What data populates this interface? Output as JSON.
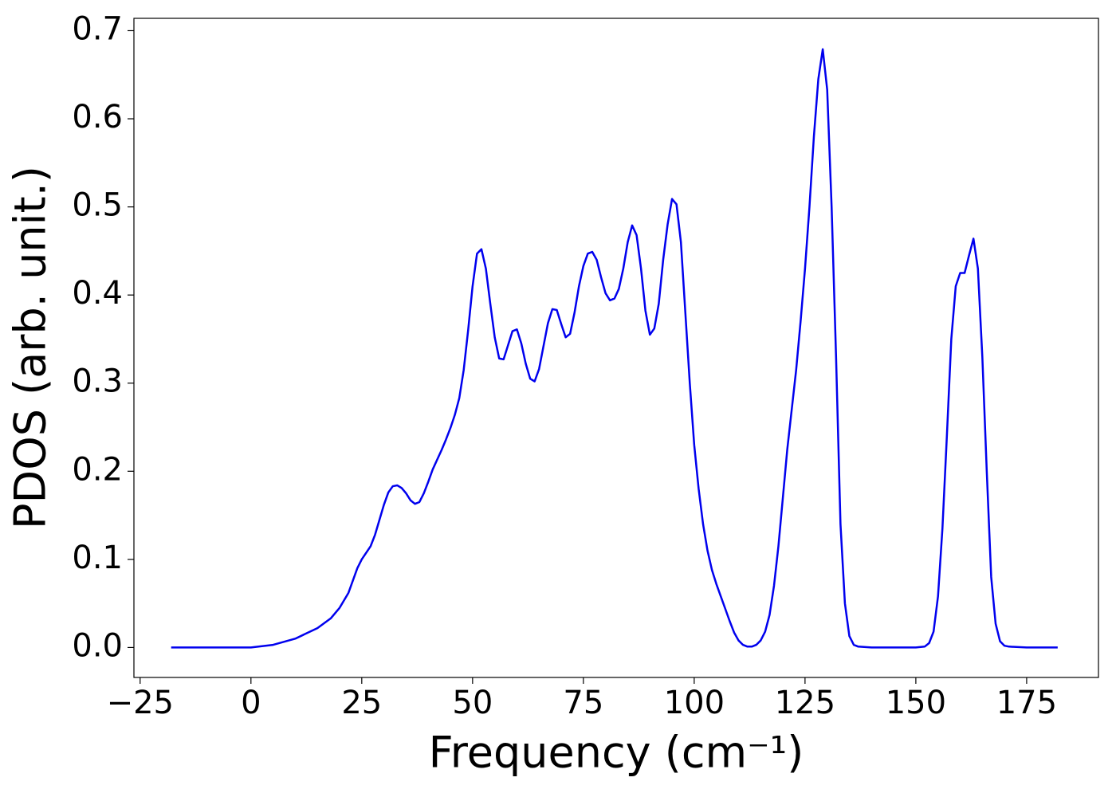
{
  "chart_data": {
    "type": "line",
    "xlabel": "Frequency (cm⁻¹)",
    "ylabel": "PDOS (arb. unit.)",
    "xlim": [
      -26.4,
      191.2
    ],
    "ylim": [
      -0.034,
      0.714
    ],
    "xticks": [
      {
        "value": -25,
        "label": "−25"
      },
      0,
      25,
      50,
      75,
      100,
      125,
      150,
      175
    ],
    "yticks": [
      {
        "value": 0,
        "label": "0.0"
      },
      0.1,
      0.2,
      0.3,
      0.4,
      0.5,
      0.6,
      0.7
    ],
    "series": [
      {
        "color": "#0000ee",
        "x": [
          -18,
          -10,
          0,
          5,
          10,
          15,
          18,
          20,
          22,
          24,
          25,
          27,
          28,
          29,
          30,
          31,
          32,
          33,
          34,
          35,
          36,
          37,
          38,
          39,
          40,
          41,
          42,
          43,
          44,
          45,
          46,
          47,
          48,
          49,
          50,
          51,
          52,
          53,
          54,
          55,
          56,
          57,
          58,
          59,
          60,
          61,
          62,
          63,
          64,
          65,
          66,
          67,
          68,
          69,
          70,
          71,
          72,
          73,
          74,
          75,
          76,
          77,
          78,
          79,
          80,
          81,
          82,
          83,
          84,
          85,
          86,
          87,
          88,
          89,
          90,
          91,
          92,
          93,
          94,
          95,
          96,
          97,
          98,
          99,
          100,
          101,
          102,
          103,
          104,
          105,
          106,
          107,
          108,
          109,
          110,
          111,
          112,
          113,
          114,
          115,
          116,
          117,
          118,
          119,
          120,
          121,
          122,
          123,
          124,
          125,
          126,
          127,
          128,
          129,
          130,
          131,
          132,
          133,
          134,
          135,
          136,
          137,
          140,
          150,
          152,
          153,
          154,
          155,
          156,
          157,
          158,
          159,
          160,
          161,
          162,
          163,
          164,
          165,
          166,
          167,
          168,
          169,
          170,
          171,
          175,
          182
        ],
        "values": [
          0,
          0,
          0,
          0.003,
          0.01,
          0.022,
          0.033,
          0.045,
          0.062,
          0.09,
          0.1,
          0.115,
          0.128,
          0.145,
          0.162,
          0.176,
          0.183,
          0.184,
          0.181,
          0.175,
          0.167,
          0.163,
          0.165,
          0.175,
          0.188,
          0.202,
          0.213,
          0.224,
          0.236,
          0.249,
          0.264,
          0.283,
          0.315,
          0.36,
          0.41,
          0.447,
          0.452,
          0.43,
          0.39,
          0.352,
          0.328,
          0.327,
          0.343,
          0.359,
          0.361,
          0.345,
          0.322,
          0.305,
          0.302,
          0.316,
          0.342,
          0.368,
          0.384,
          0.383,
          0.367,
          0.352,
          0.356,
          0.38,
          0.41,
          0.433,
          0.447,
          0.449,
          0.44,
          0.42,
          0.402,
          0.394,
          0.396,
          0.407,
          0.43,
          0.46,
          0.479,
          0.468,
          0.43,
          0.382,
          0.355,
          0.362,
          0.39,
          0.44,
          0.48,
          0.509,
          0.503,
          0.46,
          0.38,
          0.3,
          0.23,
          0.18,
          0.14,
          0.11,
          0.088,
          0.072,
          0.058,
          0.044,
          0.03,
          0.017,
          0.008,
          0.003,
          0.001,
          0.001,
          0.003,
          0.008,
          0.018,
          0.037,
          0.07,
          0.115,
          0.17,
          0.225,
          0.27,
          0.315,
          0.37,
          0.43,
          0.5,
          0.58,
          0.645,
          0.679,
          0.633,
          0.5,
          0.33,
          0.14,
          0.05,
          0.013,
          0.003,
          0.001,
          0,
          0,
          0.001,
          0.005,
          0.018,
          0.058,
          0.135,
          0.24,
          0.35,
          0.41,
          0.425,
          0.425,
          0.445,
          0.464,
          0.43,
          0.33,
          0.2,
          0.08,
          0.027,
          0.007,
          0.002,
          0.001,
          0,
          0
        ]
      }
    ]
  }
}
